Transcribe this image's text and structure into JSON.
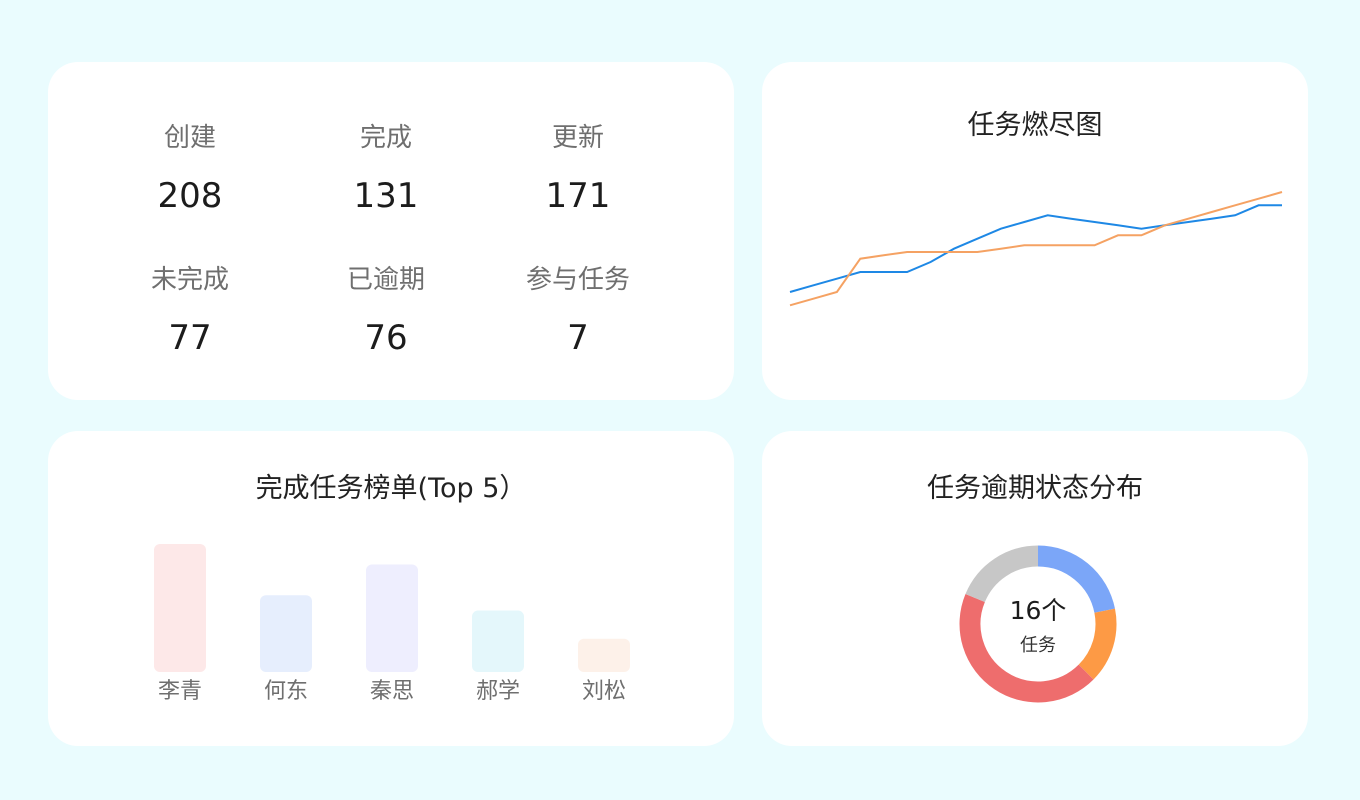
{
  "stats": [
    {
      "label": "创建",
      "value": "208"
    },
    {
      "label": "完成",
      "value": "131"
    },
    {
      "label": "更新",
      "value": "171"
    },
    {
      "label": "未完成",
      "value": "77"
    },
    {
      "label": "已逾期",
      "value": "76"
    },
    {
      "label": "参与任务",
      "value": "7"
    }
  ],
  "burndown": {
    "title": "任务燃尽图",
    "chart_data": {
      "type": "line",
      "series": [
        {
          "color": "#1e88e5",
          "values": [
            21,
            23,
            25,
            27,
            27,
            27,
            30,
            34,
            37,
            40,
            42,
            44,
            43,
            42,
            41,
            40,
            41,
            42,
            43,
            44,
            47,
            47
          ]
        },
        {
          "color": "#f5a263",
          "values": [
            17,
            19,
            21,
            31,
            32,
            33,
            33,
            33,
            33,
            34,
            35,
            35,
            35,
            35,
            38,
            38,
            41,
            43,
            45,
            47,
            49,
            51
          ]
        }
      ],
      "ylim": [
        0,
        60
      ]
    }
  },
  "ranking": {
    "title": "完成任务榜单(Top 5）",
    "chart_data": {
      "type": "bar",
      "categories": [
        "李青",
        "何东",
        "秦思",
        "郝学",
        "刘松"
      ],
      "values": [
        50,
        30,
        42,
        24,
        13
      ],
      "colors": [
        "#fde8e8",
        "#e6eefd",
        "#eeeefe",
        "#e4f7fb",
        "#fdf1e9"
      ],
      "ylim": [
        0,
        50
      ]
    }
  },
  "overdue": {
    "title": "任务逾期状态分布",
    "center_value": "16个",
    "center_label": "任务",
    "chart_data": {
      "type": "pie",
      "values": [
        3.5,
        2.5,
        7,
        3
      ],
      "colors": [
        "#7ba6f8",
        "#fd9a45",
        "#ee6d6d",
        "#c7c7c7"
      ]
    }
  }
}
